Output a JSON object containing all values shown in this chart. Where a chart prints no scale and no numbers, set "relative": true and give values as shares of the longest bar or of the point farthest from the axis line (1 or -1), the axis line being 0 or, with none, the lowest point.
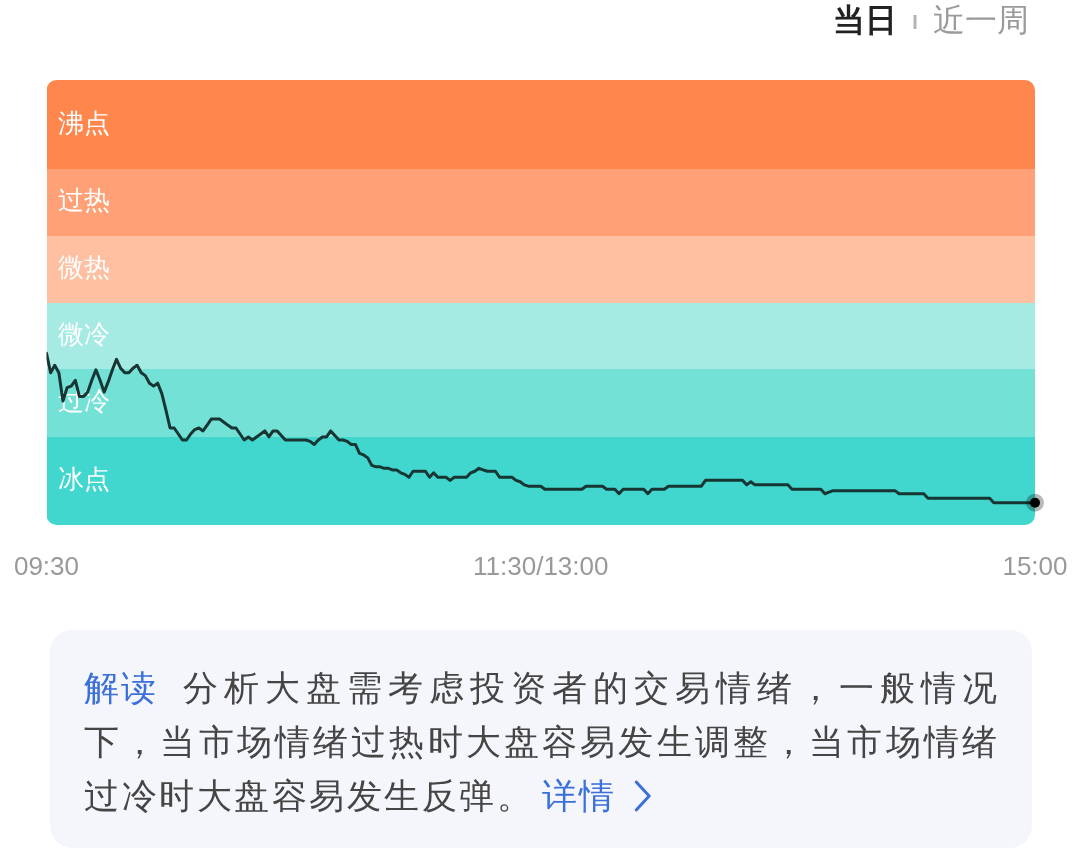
{
  "chart_data": {
    "type": "line",
    "relative": true,
    "categories": [
      "09:30",
      null,
      null,
      null,
      null,
      null,
      null,
      null,
      null,
      null,
      null,
      null,
      null,
      null,
      null,
      null,
      null,
      null,
      null,
      null,
      null,
      null,
      null,
      null,
      null,
      null,
      null,
      null,
      null,
      null,
      null,
      null,
      null,
      null,
      null,
      null,
      null,
      null,
      null,
      null,
      null,
      null,
      null,
      null,
      null,
      null,
      null,
      null,
      null,
      null,
      null,
      null,
      null,
      null,
      null,
      null,
      null,
      null,
      null,
      null,
      null,
      null,
      null,
      null,
      null,
      null,
      null,
      null,
      null,
      null,
      null,
      null,
      null,
      null,
      null,
      null,
      null,
      null,
      null,
      null,
      null,
      null,
      null,
      null,
      null,
      null,
      null,
      null,
      null,
      null,
      null,
      null,
      null,
      null,
      null,
      null,
      null,
      null,
      null,
      null,
      null,
      null,
      null,
      null,
      null,
      null,
      null,
      null,
      null,
      null,
      null,
      null,
      null,
      null,
      null,
      null,
      null,
      null,
      null,
      null,
      "11:30/13:00",
      null,
      null,
      null,
      null,
      null,
      null,
      null,
      null,
      null,
      null,
      null,
      null,
      null,
      null,
      null,
      null,
      null,
      null,
      null,
      null,
      null,
      null,
      null,
      null,
      null,
      null,
      null,
      null,
      null,
      null,
      null,
      null,
      null,
      null,
      null,
      null,
      null,
      null,
      null,
      null,
      null,
      null,
      null,
      null,
      null,
      null,
      null,
      null,
      null,
      null,
      null,
      null,
      null,
      null,
      null,
      null,
      null,
      null,
      null,
      null,
      null,
      null,
      null,
      null,
      null,
      null,
      null,
      null,
      null,
      null,
      null,
      null,
      null,
      null,
      null,
      null,
      null,
      null,
      null,
      null,
      null,
      null,
      null,
      null,
      null,
      null,
      null,
      null,
      null,
      null,
      null,
      null,
      null,
      null,
      null,
      null,
      null,
      null,
      null,
      null,
      null,
      null,
      null,
      null,
      null,
      null,
      null,
      null,
      null,
      null,
      null,
      null,
      null,
      null,
      null,
      null,
      null,
      null,
      null,
      "15:00"
    ],
    "series": [
      {
        "color": "#173633",
        "values": [
          1.0,
          0.887,
          0.93,
          0.887,
          0.722,
          0.8,
          0.809,
          0.843,
          0.748,
          0.748,
          0.774,
          0.843,
          0.904,
          0.843,
          0.774,
          0.835,
          0.904,
          0.965,
          0.913,
          0.887,
          0.887,
          0.913,
          0.93,
          0.887,
          0.87,
          0.826,
          0.809,
          0.826,
          0.765,
          0.669,
          0.565,
          0.565,
          0.53,
          0.495,
          0.495,
          0.53,
          0.556,
          0.565,
          0.548,
          0.582,
          0.617,
          0.617,
          0.617,
          0.6,
          0.582,
          0.565,
          0.565,
          0.53,
          0.495,
          0.513,
          0.495,
          0.513,
          0.53,
          0.548,
          0.513,
          0.548,
          0.548,
          0.521,
          0.495,
          0.495,
          0.495,
          0.495,
          0.495,
          0.495,
          0.487,
          0.469,
          0.495,
          0.513,
          0.513,
          0.548,
          0.521,
          0.495,
          0.495,
          0.487,
          0.469,
          0.469,
          0.417,
          0.408,
          0.391,
          0.347,
          0.339,
          0.339,
          0.33,
          0.33,
          0.321,
          0.321,
          0.304,
          0.295,
          0.278,
          0.313,
          0.313,
          0.313,
          0.313,
          0.278,
          0.304,
          0.278,
          0.278,
          0.278,
          0.26,
          0.278,
          0.278,
          0.278,
          0.278,
          0.304,
          0.313,
          0.33,
          0.321,
          0.313,
          0.313,
          0.313,
          0.278,
          0.278,
          0.278,
          0.278,
          0.26,
          0.252,
          0.234,
          0.226,
          0.226,
          0.226,
          0.226,
          0.208,
          0.208,
          0.208,
          0.208,
          0.208,
          0.208,
          0.208,
          0.208,
          0.208,
          0.208,
          0.226,
          0.226,
          0.226,
          0.226,
          0.226,
          0.208,
          0.208,
          0.208,
          0.182,
          0.208,
          0.208,
          0.208,
          0.208,
          0.208,
          0.208,
          0.182,
          0.208,
          0.208,
          0.208,
          0.208,
          0.226,
          0.226,
          0.226,
          0.226,
          0.226,
          0.226,
          0.226,
          0.226,
          0.226,
          0.26,
          0.26,
          0.26,
          0.26,
          0.26,
          0.26,
          0.26,
          0.26,
          0.26,
          0.26,
          0.234,
          0.252,
          0.234,
          0.234,
          0.234,
          0.234,
          0.234,
          0.234,
          0.234,
          0.234,
          0.234,
          0.208,
          0.208,
          0.208,
          0.208,
          0.208,
          0.208,
          0.208,
          0.208,
          0.182,
          0.191,
          0.2,
          0.2,
          0.2,
          0.2,
          0.2,
          0.2,
          0.2,
          0.2,
          0.2,
          0.2,
          0.2,
          0.2,
          0.2,
          0.2,
          0.2,
          0.2,
          0.182,
          0.182,
          0.182,
          0.182,
          0.182,
          0.182,
          0.182,
          0.156,
          0.156,
          0.156,
          0.156,
          0.156,
          0.156,
          0.156,
          0.156,
          0.156,
          0.156,
          0.156,
          0.156,
          0.156,
          0.156,
          0.156,
          0.156,
          0.13,
          0.13,
          0.13,
          0.13,
          0.13,
          0.13,
          0.13,
          0.13,
          0.13,
          0.13,
          0.13
        ]
      },
      {
        "type": "scatter",
        "color": "#000000",
        "values": [
          null,
          null,
          null,
          null,
          null,
          null,
          null,
          null,
          null,
          null,
          null,
          null,
          null,
          null,
          null,
          null,
          null,
          null,
          null,
          null,
          null,
          null,
          null,
          null,
          null,
          null,
          null,
          null,
          null,
          null,
          null,
          null,
          null,
          null,
          null,
          null,
          null,
          null,
          null,
          null,
          null,
          null,
          null,
          null,
          null,
          null,
          null,
          null,
          null,
          null,
          null,
          null,
          null,
          null,
          null,
          null,
          null,
          null,
          null,
          null,
          null,
          null,
          null,
          null,
          null,
          null,
          null,
          null,
          null,
          null,
          null,
          null,
          null,
          null,
          null,
          null,
          null,
          null,
          null,
          null,
          null,
          null,
          null,
          null,
          null,
          null,
          null,
          null,
          null,
          null,
          null,
          null,
          null,
          null,
          null,
          null,
          null,
          null,
          null,
          null,
          null,
          null,
          null,
          null,
          null,
          null,
          null,
          null,
          null,
          null,
          null,
          null,
          null,
          null,
          null,
          null,
          null,
          null,
          null,
          null,
          null,
          null,
          null,
          null,
          null,
          null,
          null,
          null,
          null,
          null,
          null,
          null,
          null,
          null,
          null,
          null,
          null,
          null,
          null,
          null,
          null,
          null,
          null,
          null,
          null,
          null,
          null,
          null,
          null,
          null,
          null,
          null,
          null,
          null,
          null,
          null,
          null,
          null,
          null,
          null,
          null,
          null,
          null,
          null,
          null,
          null,
          null,
          null,
          null,
          null,
          null,
          null,
          null,
          null,
          null,
          null,
          null,
          null,
          null,
          null,
          null,
          null,
          null,
          null,
          null,
          null,
          null,
          null,
          null,
          null,
          null,
          null,
          null,
          null,
          null,
          null,
          null,
          null,
          null,
          null,
          null,
          null,
          null,
          null,
          null,
          null,
          null,
          null,
          null,
          null,
          null,
          null,
          null,
          null,
          null,
          null,
          null,
          null,
          null,
          null,
          null,
          null,
          null,
          null,
          null,
          null,
          null,
          null,
          null,
          null,
          null,
          null,
          null,
          null,
          null,
          null,
          null,
          null,
          null,
          null,
          0.13
        ]
      }
    ],
    "bands": [
      {
        "axis": "y",
        "from": 0,
        "to": 0.513,
        "label": "冰点",
        "color": "#41d7ce"
      },
      {
        "axis": "y",
        "from": 0.513,
        "to": 0.907,
        "label": "过冷",
        "color": "#74e1d6"
      },
      {
        "axis": "y",
        "from": 0.907,
        "to": 1.296,
        "label": "微冷",
        "color": "#a5ebe4"
      },
      {
        "axis": "y",
        "from": 1.296,
        "to": 1.685,
        "label": "微热",
        "color": "#ffbfa1"
      },
      {
        "axis": "y",
        "from": 1.685,
        "to": 2.073,
        "label": "过热",
        "color": "#ffa077"
      },
      {
        "axis": "y",
        "from": 2.073,
        "to": 2.592,
        "label": "沸点",
        "color": "#ff874d"
      }
    ],
    "annotations": [
      "当日",
      "近一周",
      "解读",
      "分析大盘需考虑投资者的交易情绪，一般情况下，当市场情绪过热时大盘容易发生调整，当市场情绪过冷时大盘容易发生反弹。",
      "详情"
    ]
  }
}
